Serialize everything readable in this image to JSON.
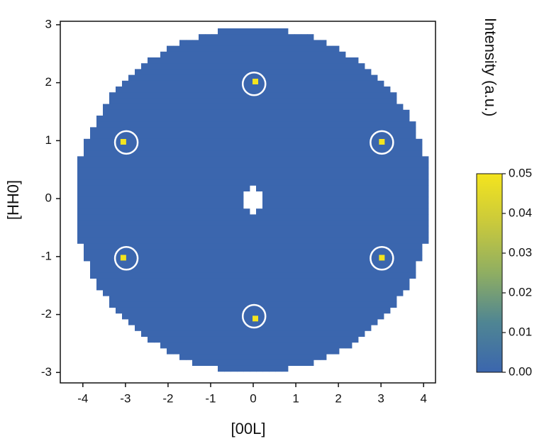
{
  "chart_data": {
    "type": "heatmap",
    "x_label": "[00L]",
    "y_label": "[HH0]",
    "colorbar_label": "Intensity (a.u.)",
    "xlim": [
      -4.53,
      4.28
    ],
    "ylim": [
      -3.18,
      3.06
    ],
    "xticks": [
      -4,
      -3,
      -2,
      -1,
      0,
      1,
      2,
      3,
      4
    ],
    "yticks": [
      -3,
      -2,
      -1,
      0,
      1,
      2,
      3
    ],
    "clim": [
      0,
      0.05
    ],
    "cticks": [
      {
        "value": 0,
        "label": "0.00"
      },
      0.01,
      0.02,
      0.03,
      0.04,
      0.05
    ],
    "colormap": [
      "#3b66ae",
      "#4f8593",
      "#8fae62",
      "#c9c93c",
      "#f4e41e"
    ],
    "peaks": {
      "x": [
        0.05,
        -3.05,
        3.02,
        -3.05,
        3.02,
        0.05
      ],
      "y": [
        2.02,
        0.98,
        0.98,
        -1.02,
        -1.02,
        -2.07
      ],
      "values": [
        0.05,
        0.05,
        0.05,
        0.05,
        0.05,
        0.05
      ]
    },
    "circles": {
      "x": [
        0.02,
        -2.98,
        3.02,
        -2.98,
        3.02,
        0.02
      ],
      "y": [
        1.98,
        0.97,
        0.97,
        -1.03,
        -1.03,
        -2.03
      ]
    }
  }
}
